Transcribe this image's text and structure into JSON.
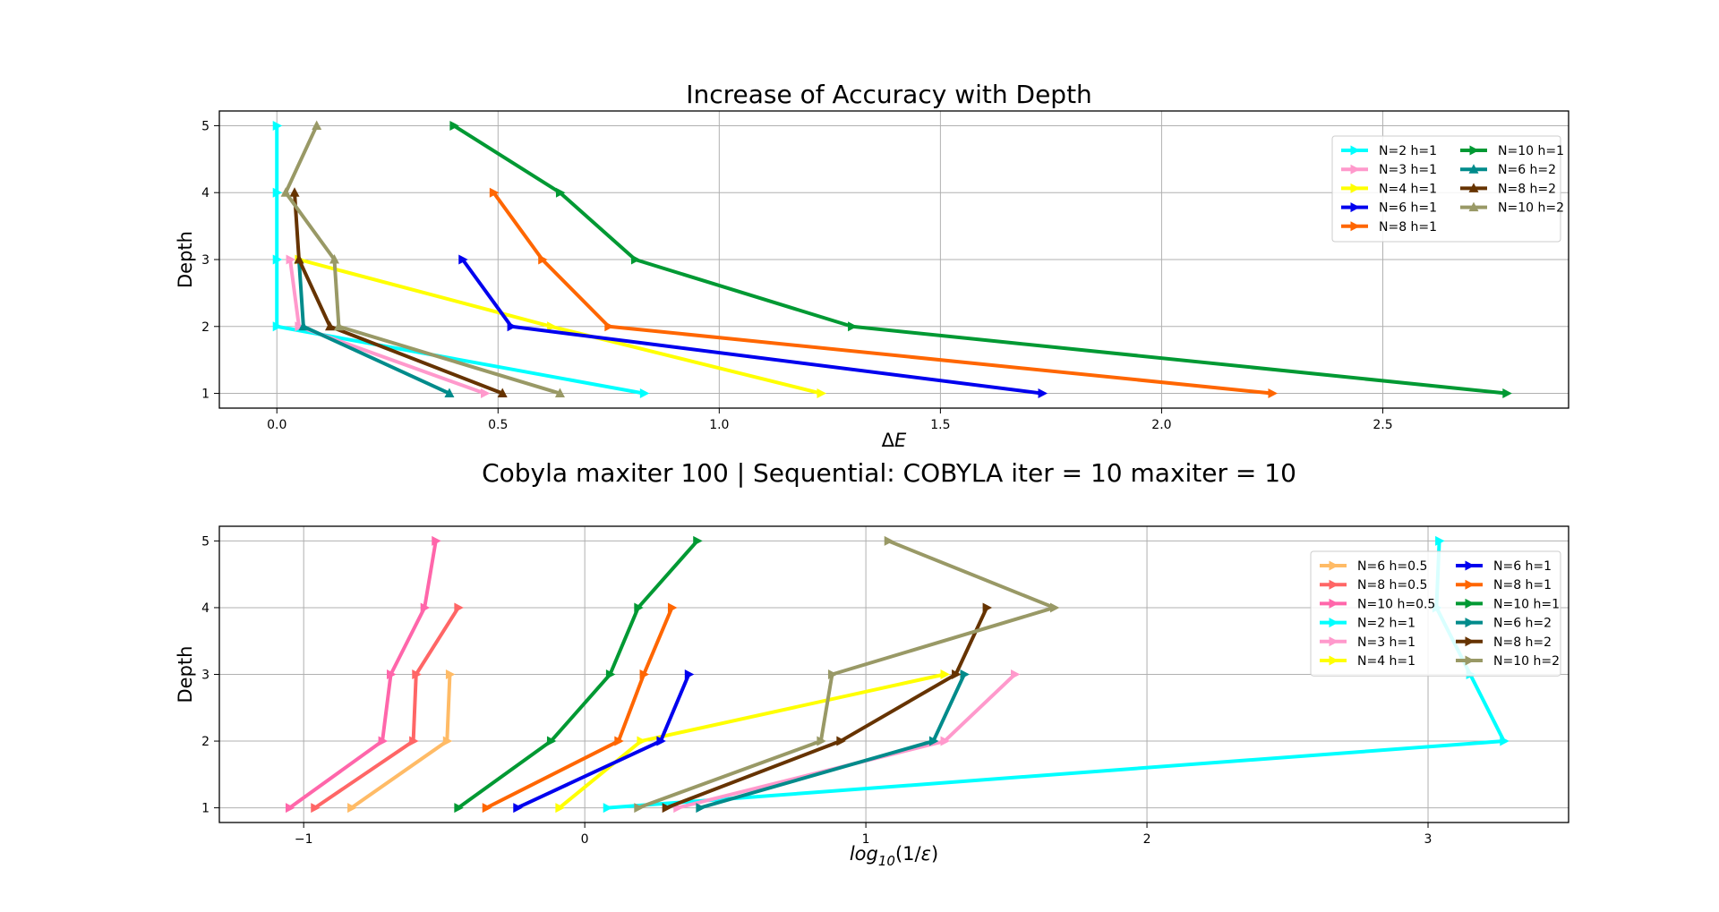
{
  "figure": {
    "top_title": "Increase of Accuracy with Depth",
    "mid_title": "Cobyla maxiter 100 | Sequential: COBYLA iter = 10 maxiter = 10"
  },
  "chart_data": [
    {
      "type": "line",
      "title": "Increase of Accuracy with Depth",
      "xlabel": "ΔE",
      "ylabel": "Depth",
      "xlim": [
        -0.13,
        2.92
      ],
      "ylim": [
        0.78,
        5.22
      ],
      "xticks": [
        0.0,
        0.5,
        1.0,
        1.5,
        2.0,
        2.5
      ],
      "xtick_labels": [
        "0.0",
        "0.5",
        "1.0",
        "1.5",
        "2.0",
        "2.5"
      ],
      "yticks": [
        1,
        2,
        3,
        4,
        5
      ],
      "ytick_labels": [
        "1",
        "2",
        "3",
        "4",
        "5"
      ],
      "grid": true,
      "legend_position": "upper right",
      "legend_columns": 2,
      "series": [
        {
          "name": "N=2 h=1",
          "color": "#00ffff",
          "marker": "right",
          "depth": [
            1,
            2,
            3,
            4,
            5
          ],
          "x": [
            0.83,
            0.0,
            0.0,
            0.0,
            0.0
          ]
        },
        {
          "name": "N=3 h=1",
          "color": "#ff99cc",
          "marker": "right",
          "depth": [
            1,
            2,
            3
          ],
          "x": [
            0.47,
            0.05,
            0.03
          ]
        },
        {
          "name": "N=4 h=1",
          "color": "#ffff00",
          "marker": "right",
          "depth": [
            1,
            2,
            3
          ],
          "x": [
            1.23,
            0.62,
            0.05
          ]
        },
        {
          "name": "N=6 h=1",
          "color": "#0000ee",
          "marker": "right",
          "depth": [
            1,
            2,
            3
          ],
          "x": [
            1.73,
            0.53,
            0.42
          ]
        },
        {
          "name": "N=8 h=1",
          "color": "#ff6600",
          "marker": "right",
          "depth": [
            1,
            2,
            3,
            4
          ],
          "x": [
            2.25,
            0.75,
            0.6,
            0.49
          ]
        },
        {
          "name": "N=10 h=1",
          "color": "#009933",
          "marker": "right",
          "depth": [
            1,
            2,
            3,
            4,
            5
          ],
          "x": [
            2.78,
            1.3,
            0.81,
            0.64,
            0.4
          ]
        },
        {
          "name": "N=6 h=2",
          "color": "#008b8b",
          "marker": "up",
          "depth": [
            1,
            2,
            3
          ],
          "x": [
            0.39,
            0.06,
            0.05
          ]
        },
        {
          "name": "N=8 h=2",
          "color": "#663300",
          "marker": "up",
          "depth": [
            1,
            2,
            3,
            4
          ],
          "x": [
            0.51,
            0.12,
            0.05,
            0.04
          ]
        },
        {
          "name": "N=10 h=2",
          "color": "#999966",
          "marker": "up",
          "depth": [
            1,
            2,
            3,
            4,
            5
          ],
          "x": [
            0.64,
            0.14,
            0.13,
            0.02,
            0.09
          ]
        }
      ]
    },
    {
      "type": "line",
      "title": "",
      "xlabel": "log10(1/ε)",
      "ylabel": "Depth",
      "xlim": [
        -1.3,
        3.5
      ],
      "ylim": [
        0.78,
        5.22
      ],
      "xticks": [
        -1,
        0,
        1,
        2,
        3
      ],
      "xtick_labels": [
        "−1",
        "0",
        "1",
        "2",
        "3"
      ],
      "yticks": [
        1,
        2,
        3,
        4,
        5
      ],
      "ytick_labels": [
        "1",
        "2",
        "3",
        "4",
        "5"
      ],
      "grid": true,
      "legend_position": "upper right",
      "legend_columns": 2,
      "series": [
        {
          "name": "N=6 h=0.5",
          "color": "#ffbb66",
          "marker": "right",
          "depth": [
            1,
            2,
            3
          ],
          "x": [
            -0.83,
            -0.49,
            -0.48
          ]
        },
        {
          "name": "N=8 h=0.5",
          "color": "#ff6666",
          "marker": "right",
          "depth": [
            1,
            2,
            3,
            4
          ],
          "x": [
            -0.96,
            -0.61,
            -0.6,
            -0.45
          ]
        },
        {
          "name": "N=10 h=0.5",
          "color": "#ff66aa",
          "marker": "right",
          "depth": [
            1,
            2,
            3,
            4,
            5
          ],
          "x": [
            -1.05,
            -0.72,
            -0.69,
            -0.57,
            -0.53
          ]
        },
        {
          "name": "N=2 h=1",
          "color": "#00ffff",
          "marker": "right",
          "depth": [
            1,
            2,
            3,
            4,
            5
          ],
          "x": [
            0.08,
            3.27,
            3.15,
            3.03,
            3.04
          ]
        },
        {
          "name": "N=3 h=1",
          "color": "#ff99cc",
          "marker": "right",
          "depth": [
            1,
            2,
            3
          ],
          "x": [
            0.33,
            1.28,
            1.53
          ]
        },
        {
          "name": "N=4 h=1",
          "color": "#ffff00",
          "marker": "right",
          "depth": [
            1,
            2,
            3
          ],
          "x": [
            -0.09,
            0.2,
            1.28
          ]
        },
        {
          "name": "N=6 h=1",
          "color": "#0000ee",
          "marker": "right",
          "depth": [
            1,
            2,
            3
          ],
          "x": [
            -0.24,
            0.27,
            0.37
          ]
        },
        {
          "name": "N=8 h=1",
          "color": "#ff6600",
          "marker": "right",
          "depth": [
            1,
            2,
            3,
            4
          ],
          "x": [
            -0.35,
            0.12,
            0.21,
            0.31
          ]
        },
        {
          "name": "N=10 h=1",
          "color": "#009933",
          "marker": "right",
          "depth": [
            1,
            2,
            3,
            4,
            5
          ],
          "x": [
            -0.45,
            -0.12,
            0.09,
            0.19,
            0.4
          ]
        },
        {
          "name": "N=6 h=2",
          "color": "#008b8b",
          "marker": "right",
          "depth": [
            1,
            2,
            3
          ],
          "x": [
            0.41,
            1.24,
            1.35
          ]
        },
        {
          "name": "N=8 h=2",
          "color": "#663300",
          "marker": "right",
          "depth": [
            1,
            2,
            3,
            4
          ],
          "x": [
            0.29,
            0.91,
            1.32,
            1.43
          ]
        },
        {
          "name": "N=10 h=2",
          "color": "#999966",
          "marker": "right",
          "depth": [
            1,
            2,
            3,
            4,
            5
          ],
          "x": [
            0.19,
            0.84,
            0.88,
            1.67,
            1.08
          ]
        }
      ]
    }
  ]
}
